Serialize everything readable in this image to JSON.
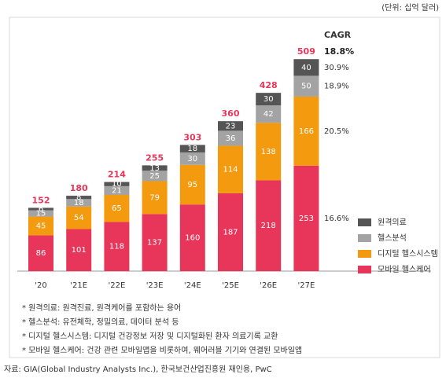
{
  "chart_data": {
    "type": "stacked_bar",
    "unit_label": "(단위: 십억 달러)",
    "categories": [
      "'20",
      "'21E",
      "'22E",
      "'23E",
      "'24E",
      "'25E",
      "'26E",
      "'27E"
    ],
    "series": [
      {
        "name": "모바일 헬스케어",
        "color": "#e8365a",
        "values": [
          86,
          101,
          118,
          137,
          160,
          187,
          218,
          253
        ]
      },
      {
        "name": "디지털 헬스시스템",
        "color": "#f39a0f",
        "values": [
          45,
          54,
          65,
          79,
          95,
          114,
          138,
          166
        ]
      },
      {
        "name": "헬스분석",
        "color": "#a3a3a3",
        "values": [
          15,
          18,
          21,
          25,
          30,
          36,
          42,
          50
        ]
      },
      {
        "name": "원격의료",
        "color": "#555555",
        "values": [
          6,
          8,
          10,
          13,
          18,
          23,
          30,
          40
        ]
      }
    ],
    "totals": [
      152,
      180,
      214,
      255,
      303,
      360,
      428,
      509
    ],
    "total_color": "#e8365a",
    "cagr_title": "CAGR",
    "cagr_total": "18.8%",
    "cagr_series": [
      "16.6%",
      "20.5%",
      "18.9%",
      "30.9%"
    ],
    "notes": [
      "* 원격의료: 원격진료, 원격케어를 포함하는 용어",
      "* 헬스분석: 유전체학, 정밀의료, 데이터 분석 등",
      "* 디지털 헬스시스템: 디지털 건강정보 저장 및 디지털화된 환자 의료기록 교환",
      "* 모바일 헬스케어: 건강 관련 모바일앱을 비롯하여, 웨어러블 기기와 연결된 모바일앱"
    ],
    "source": "자료: GIA(Global Industry Analysts Inc.), 한국보건산업진흥원 재인용, PwC"
  }
}
